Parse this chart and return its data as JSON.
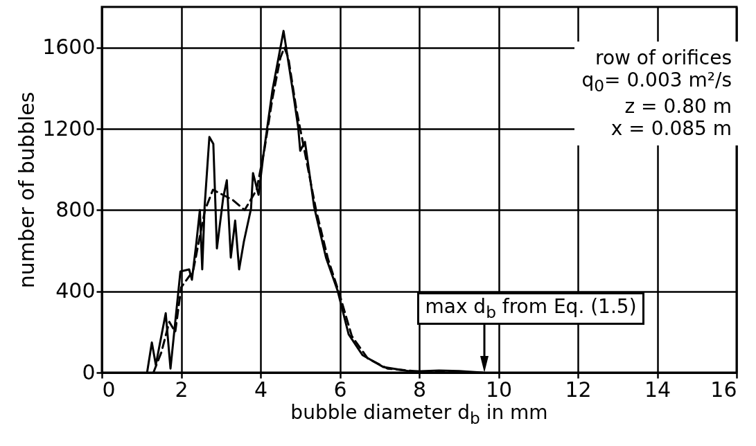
{
  "chart_data": {
    "type": "line",
    "xlabel": "bubble diameter d$_{b}$ in mm",
    "ylabel": "number of bubbles",
    "xlim": [
      0,
      16
    ],
    "ylim": [
      0,
      1800
    ],
    "xticks": [
      0,
      2,
      4,
      6,
      8,
      10,
      12,
      14,
      16
    ],
    "yticks": [
      0,
      400,
      800,
      1200,
      1600
    ],
    "grid": true,
    "annotations": [
      "row of orifices",
      "q$_{0}$= 0.003 m²/s",
      "z = 0.80 m",
      "x = 0.085 m",
      {
        "text": "max d$_{b}$ from Eq. (1.5)",
        "x": 9.65,
        "y": 0
      }
    ],
    "series": [
      {
        "color": "#000000",
        "line_style": "solid",
        "x": [
          1.14,
          1.26,
          1.36,
          1.61,
          1.73,
          1.98,
          2.2,
          2.27,
          2.38,
          2.47,
          2.53,
          2.59,
          2.71,
          2.81,
          2.9,
          3.06,
          3.15,
          3.25,
          3.36,
          3.46,
          3.58,
          3.76,
          3.81,
          3.95,
          4.07,
          4.3,
          4.58,
          4.83,
          4.95,
          5.0,
          5.12,
          5.35,
          5.65,
          5.94,
          6.22,
          6.57,
          7.1,
          7.8,
          8.5,
          9.0,
          9.6
        ],
        "values": [
          0,
          148,
          38,
          292,
          20,
          498,
          508,
          457,
          635,
          800,
          508,
          817,
          1160,
          1126,
          611,
          862,
          947,
          566,
          748,
          508,
          645,
          807,
          982,
          875,
          1068,
          1390,
          1682,
          1366,
          1205,
          1092,
          1136,
          817,
          566,
          405,
          189,
          86,
          27,
          5,
          10,
          8,
          0
        ]
      },
      {
        "color": "#000000",
        "line_style": "dashed",
        "x": [
          1.3,
          1.5,
          1.7,
          1.85,
          2.0,
          2.3,
          2.6,
          2.8,
          3.0,
          3.3,
          3.6,
          3.9,
          4.1,
          4.3,
          4.5,
          4.6,
          4.7,
          4.9,
          5.1,
          5.4,
          5.7,
          6.0,
          6.3,
          6.7,
          7.2,
          8.0,
          9.0
        ],
        "values": [
          0,
          100,
          250,
          200,
          420,
          500,
          800,
          900,
          880,
          850,
          800,
          900,
          1100,
          1350,
          1550,
          1600,
          1550,
          1300,
          1100,
          800,
          560,
          380,
          180,
          70,
          20,
          5,
          0
        ]
      }
    ]
  }
}
